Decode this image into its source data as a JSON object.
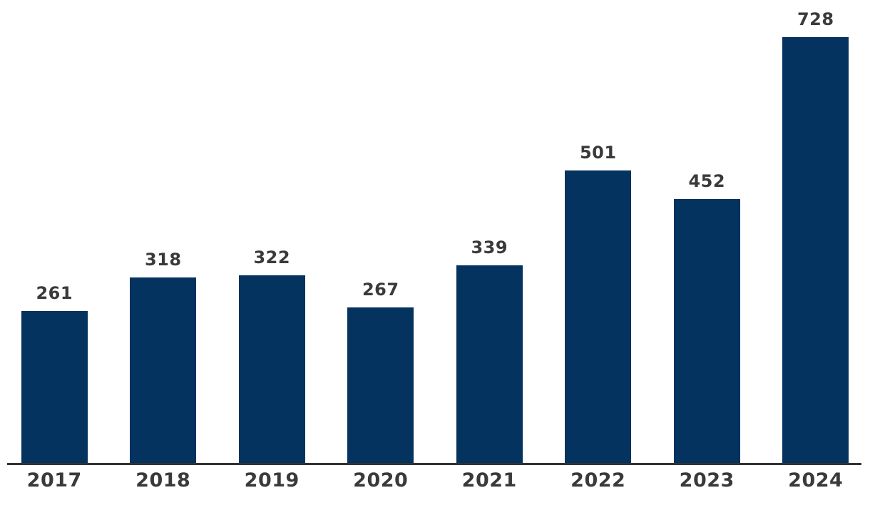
{
  "chart_data": {
    "type": "bar",
    "categories": [
      "2017",
      "2018",
      "2019",
      "2020",
      "2021",
      "2022",
      "2023",
      "2024"
    ],
    "values": [
      261,
      318,
      322,
      267,
      339,
      501,
      452,
      728
    ],
    "title": "",
    "xlabel": "",
    "ylabel": "",
    "ylim": [
      0,
      790
    ],
    "gridlines": false,
    "legend_position": "none",
    "data_labels_shown": true,
    "bar_color": "#03335e",
    "value_label_color": "#3a3a3a",
    "tick_label_color": "#3a3a3a",
    "axis_line_color": "#333333",
    "background_color": "#ffffff"
  }
}
